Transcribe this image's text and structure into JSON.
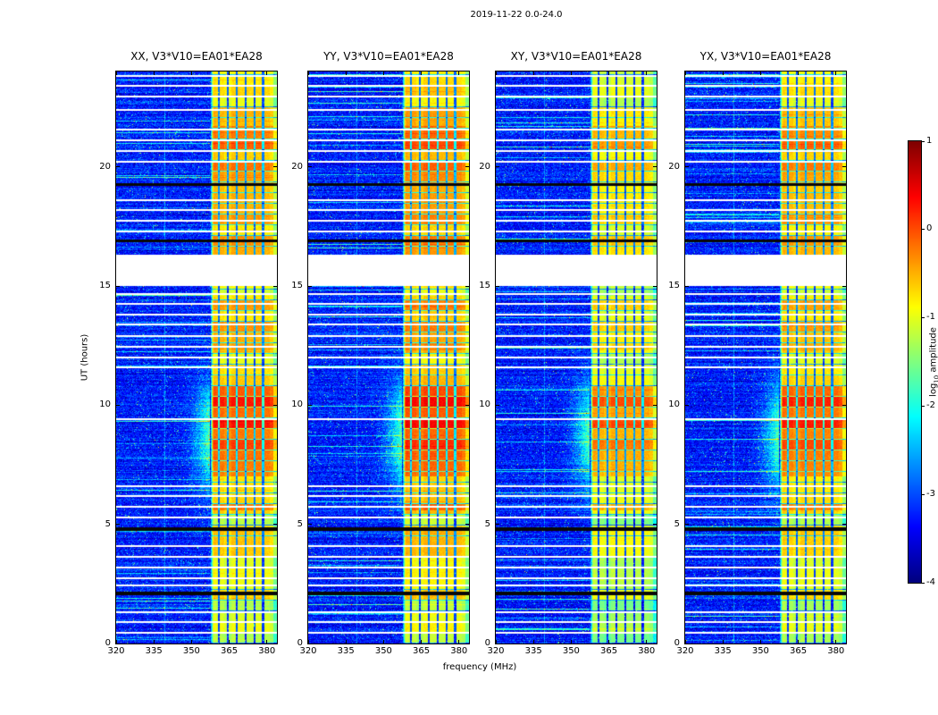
{
  "chart_data": {
    "type": "heatmap",
    "title": "2019-11-22 0.0-24.0",
    "xlabel": "frequency (MHz)",
    "ylabel": "UT (hours)",
    "x_range": [
      320,
      384
    ],
    "y_range": [
      0,
      24
    ],
    "x_ticks": [
      320,
      335,
      350,
      365,
      380
    ],
    "y_ticks": [
      0,
      5,
      10,
      15,
      20
    ],
    "panels": [
      {
        "title": "XX, V3*V10=EA01*EA28"
      },
      {
        "title": "YY, V3*V10=EA01*EA28"
      },
      {
        "title": "XY, V3*V10=EA01*EA28"
      },
      {
        "title": "YX, V3*V10=EA01*EA28"
      }
    ],
    "colorbar": {
      "label_prefix": "log",
      "label_sub": "10",
      "label_suffix": " amplitude",
      "range": [
        -4,
        1
      ],
      "ticks": [
        1,
        0,
        -1,
        -2,
        -3,
        -4
      ],
      "colormap": "jet"
    },
    "features": {
      "noise": {
        "base": -3.25,
        "sigma": 0.25,
        "bright_row_chance": 0.055,
        "speckle_chance": 0.018
      },
      "band": {
        "f_start": 357.5,
        "dark_lines": [
          361,
          364.5,
          368,
          371.5,
          375,
          378.5
        ]
      },
      "band_profile": [
        {
          "t": [
            0.0,
            1.8
          ],
          "level": -1.15
        },
        {
          "t": [
            1.8,
            4.75
          ],
          "level": -0.8
        },
        {
          "t": [
            4.75,
            5.6
          ],
          "level": -0.95
        },
        {
          "t": [
            5.6,
            7.0
          ],
          "level": -0.5
        },
        {
          "t": [
            7.0,
            10.4
          ],
          "level": 0.0
        },
        {
          "t": [
            10.4,
            11.3
          ],
          "level": -0.35
        },
        {
          "t": [
            11.3,
            12.3
          ],
          "level": -0.7
        },
        {
          "t": [
            12.3,
            14.6
          ],
          "level": -0.5
        },
        {
          "t": [
            14.6,
            15.0
          ],
          "level": -0.85
        },
        {
          "t": [
            16.3,
            19.2
          ],
          "level": -0.6
        },
        {
          "t": [
            19.2,
            21.7
          ],
          "level": -0.4
        },
        {
          "t": [
            21.7,
            24.0
          ],
          "level": -0.75
        }
      ],
      "brick_hours": 0.45,
      "blank_interval": [
        15.0,
        16.3
      ],
      "black_lines": [
        2.1,
        4.8,
        16.9,
        19.25
      ],
      "white_lines": [
        0.45,
        0.9,
        1.3,
        2.45,
        2.75,
        3.2,
        3.65,
        4.1,
        5.3,
        5.75,
        6.2,
        6.6,
        9.4,
        11.6,
        12.0,
        12.45,
        12.9,
        13.4,
        13.8,
        14.25,
        14.65,
        17.3,
        17.75,
        18.2,
        18.6,
        20.2,
        20.65,
        21.1,
        21.55,
        22.4,
        22.95,
        23.4,
        23.8
      ],
      "halo": {
        "t_center": 8.7,
        "t_sigma": 1.6,
        "f_start": 344,
        "max_boost": 1.7
      },
      "faint_vline_freq": 339.5,
      "panel_offsets": [
        0,
        0.1,
        -0.28,
        -0.05
      ]
    }
  }
}
